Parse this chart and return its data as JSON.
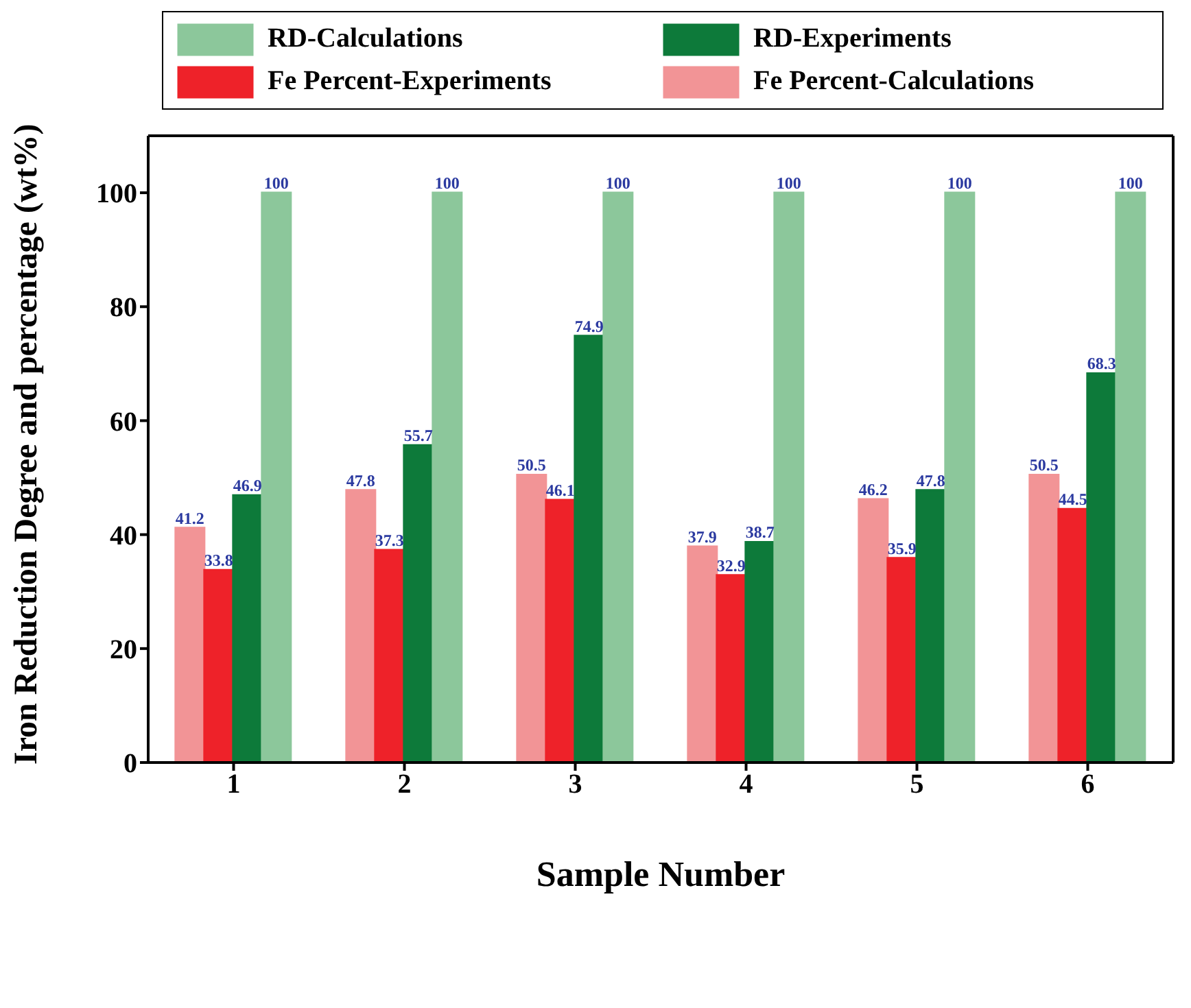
{
  "chart_data": {
    "type": "bar",
    "xlabel": "Sample Number",
    "ylabel": "Iron Reduction Degree and percentage (wt%)",
    "categories": [
      "1",
      "2",
      "3",
      "4",
      "5",
      "6"
    ],
    "series": [
      {
        "name": "Fe Percent-Calculations",
        "color": "#f29496",
        "values": [
          41.2,
          47.8,
          50.5,
          37.9,
          46.2,
          50.5
        ]
      },
      {
        "name": "Fe Percent-Experiments",
        "color": "#ee2229",
        "values": [
          33.8,
          37.3,
          46.1,
          32.9,
          35.9,
          44.5
        ]
      },
      {
        "name": "RD-Experiments",
        "color": "#0d7a3a",
        "values": [
          46.9,
          55.7,
          74.9,
          38.7,
          47.8,
          68.3
        ]
      },
      {
        "name": "RD-Calculations",
        "color": "#8cc79b",
        "values": [
          100,
          100,
          100,
          100,
          100,
          100
        ]
      }
    ],
    "ylim": [
      0,
      110
    ],
    "yticks": [
      0,
      20,
      40,
      60,
      80,
      100
    ],
    "grid": false,
    "legend": "top",
    "data_labels": true
  }
}
